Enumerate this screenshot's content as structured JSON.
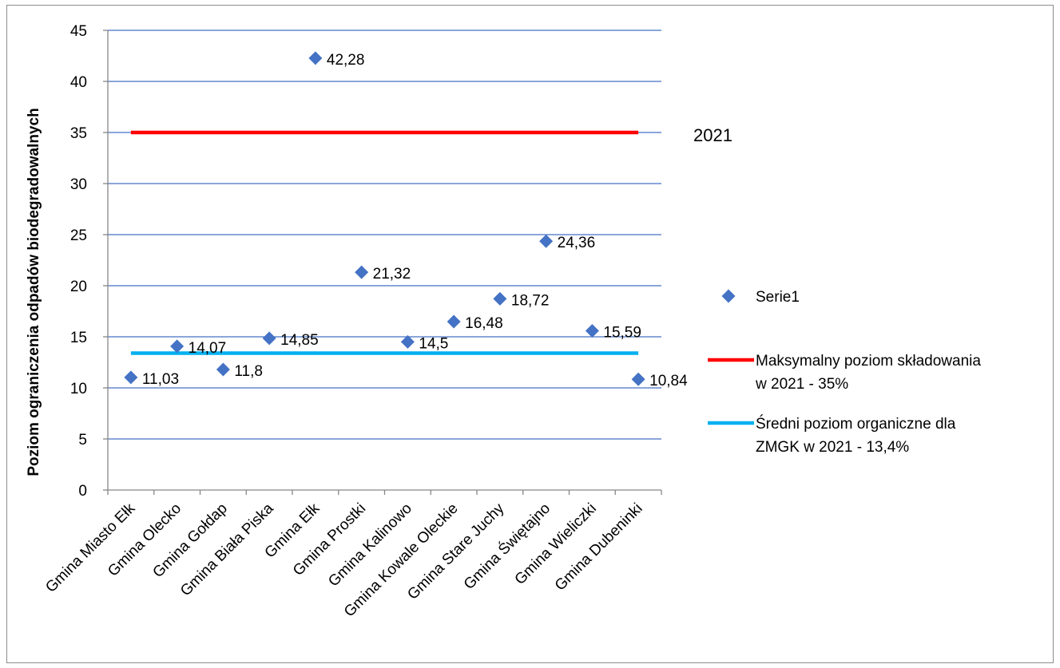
{
  "chart_data": {
    "type": "scatter",
    "annotation": "2021",
    "ylabel": "Poziom ograniczenia odpadów biodegradowalnych",
    "xlabel": "",
    "ylim": [
      0,
      45
    ],
    "y_ticks": [
      "0",
      "5",
      "10",
      "15",
      "20",
      "25",
      "30",
      "35",
      "40",
      "45"
    ],
    "grid": true,
    "legend_position": "right",
    "categories": [
      "Gmina Miasto Ełk",
      "Gmina Olecko",
      "Gmina Gołdap",
      "Gmina Biała Piska",
      "Gmina Ełk",
      "Gmina Prostki",
      "Gmina Kalinowo",
      "Gmina Kowale Oleckie",
      "Gmina Stare Juchy",
      "Gmina Świętajno",
      "Gmina Wieliczki",
      "Gmina Dubeninki"
    ],
    "series": [
      {
        "name": "Serie1",
        "marker": "diamond",
        "color": "#4472C4",
        "values": [
          11.03,
          14.07,
          11.8,
          14.85,
          42.28,
          21.32,
          14.5,
          16.48,
          18.72,
          24.36,
          15.59,
          10.84
        ],
        "data_labels": [
          "11,03",
          "14,07",
          "11,8",
          "14,85",
          "42,28",
          "21,32",
          "14,5",
          "16,48",
          "18,72",
          "24,36",
          "15,59",
          "10,84"
        ]
      }
    ],
    "reference_lines": [
      {
        "name": "Maksymalny poziom składowania w 2021 - 35%",
        "name_lines": [
          "Maksymalny poziom składowania",
          "w 2021 - 35%"
        ],
        "value": 35,
        "color": "#FF0000"
      },
      {
        "name": "Średni poziom organiczne dla ZMGK w 2021 - 13,4%",
        "name_lines": [
          "Średni poziom organiczne dla",
          "ZMGK w 2021 - 13,4%"
        ],
        "value": 13.4,
        "color": "#00B0F0"
      }
    ],
    "gridline_color": "#4472C4"
  }
}
